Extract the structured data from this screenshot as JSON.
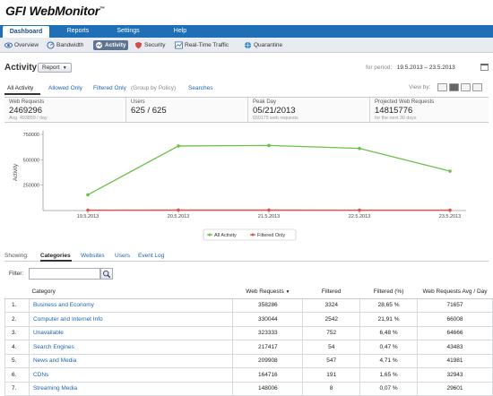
{
  "app": {
    "logo_prefix": "GFI",
    "logo_name": "WebMonitor",
    "logo_suffix": "™"
  },
  "topnav": {
    "tabs": [
      {
        "label": "Dashboard",
        "active": true
      },
      {
        "label": "Reports",
        "active": false
      },
      {
        "label": "Settings",
        "active": false
      },
      {
        "label": "Help",
        "active": false
      }
    ]
  },
  "subnav": {
    "items": [
      {
        "label": "Overview",
        "icon": "eye-icon"
      },
      {
        "label": "Bandwidth",
        "icon": "gauge-icon"
      },
      {
        "label": "Activity",
        "icon": "activity-icon",
        "active": true
      },
      {
        "label": "Security",
        "icon": "shield-icon"
      },
      {
        "label": "Real-Time Traffic",
        "icon": "chart-icon"
      },
      {
        "label": "Quarantine",
        "icon": "globe-icon"
      }
    ]
  },
  "page": {
    "title": "Activity",
    "report_label": "Report",
    "period_label": "for period:",
    "period_value": "19.5.2013 – 23.5.2013"
  },
  "filter_tabs": {
    "all": "All Activity",
    "allowed": "Allowed Only",
    "filtered": "Filtered Only",
    "note": "(Group by Policy)",
    "searches": "Searches",
    "view_by": "View by:"
  },
  "stats": {
    "web_requests": {
      "label": "Web Requests",
      "value": "2469296",
      "sub": "Avg. 493859 / day"
    },
    "users": {
      "label": "Users",
      "value": "625 / 625"
    },
    "peak_day": {
      "label": "Peak Day",
      "value": "05/21/2013",
      "sub": "650175 web requests"
    },
    "projected": {
      "label": "Projected Web Requests",
      "value": "14815776",
      "sub": "for the next 30 days"
    }
  },
  "chart_data": {
    "type": "line",
    "ylabel": "Activity",
    "ylim": [
      0,
      750000
    ],
    "yticks": [
      250000,
      500000,
      750000
    ],
    "ytick_labels": [
      "250000",
      "500000",
      "750000"
    ],
    "categories": [
      "19.5.2013",
      "20.5.2013",
      "21.5.2013",
      "22.5.2013",
      "23.5.2013"
    ],
    "series": [
      {
        "name": "All Activity",
        "color": "#6cc04a",
        "values": [
          155000,
          636000,
          641000,
          612000,
          388000
        ]
      },
      {
        "name": "Filtered Only",
        "color": "#e05050",
        "values": [
          4000,
          5000,
          5000,
          4000,
          4000
        ]
      }
    ],
    "legend": "bottom-center",
    "grid": false
  },
  "showing": {
    "label": "Showing:",
    "tabs": [
      "Categories",
      "Websites",
      "Users",
      "Event Log"
    ],
    "active": "Categories"
  },
  "filter": {
    "label": "Filter:",
    "value": "",
    "search_icon": "magnifier-icon"
  },
  "table": {
    "headers": [
      "Category",
      "Web Requests",
      "Filtered",
      "Filtered (%)",
      "Web Requests Avg / Day"
    ],
    "sort_marker": "▼",
    "rows": [
      {
        "idx": "1.",
        "category": "Business and Economy",
        "requests": "358286",
        "filtered": "3324",
        "pct": "28,65 %",
        "avg": "71657"
      },
      {
        "idx": "2.",
        "category": "Computer and Internet Info",
        "requests": "330044",
        "filtered": "2542",
        "pct": "21,91 %",
        "avg": "66008"
      },
      {
        "idx": "3.",
        "category": "Unavailable",
        "requests": "323333",
        "filtered": "752",
        "pct": "6,48 %",
        "avg": "64666"
      },
      {
        "idx": "4.",
        "category": "Search Engines",
        "requests": "217417",
        "filtered": "54",
        "pct": "0,47 %",
        "avg": "43483"
      },
      {
        "idx": "5.",
        "category": "News and Media",
        "requests": "209908",
        "filtered": "547",
        "pct": "4,71 %",
        "avg": "41981"
      },
      {
        "idx": "6.",
        "category": "CDNs",
        "requests": "164716",
        "filtered": "191",
        "pct": "1,65 %",
        "avg": "32943"
      },
      {
        "idx": "7.",
        "category": "Streaming Media",
        "requests": "148006",
        "filtered": "8",
        "pct": "0,07 %",
        "avg": "29601"
      }
    ]
  }
}
